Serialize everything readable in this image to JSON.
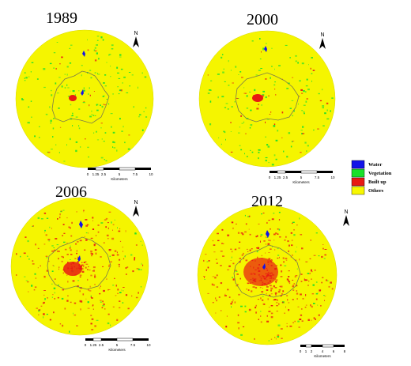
{
  "panels": [
    {
      "year": "1989",
      "scale": {
        "ticks": [
          "0",
          "1.25",
          "2.5",
          "5",
          "7.5",
          "10"
        ],
        "unit": "Kilometers"
      },
      "north_label": "N"
    },
    {
      "year": "2000",
      "scale": {
        "ticks": [
          "0",
          "1.25",
          "2.5",
          "5",
          "7.5",
          "10"
        ],
        "unit": "Kilometers"
      },
      "north_label": "N"
    },
    {
      "year": "2006",
      "scale": {
        "ticks": [
          "0",
          "1.25",
          "2.5",
          "5",
          "7.5",
          "10"
        ],
        "unit": "Kilometers"
      },
      "north_label": "N"
    },
    {
      "year": "2012",
      "scale": {
        "ticks": [
          "0",
          "1",
          "2",
          "4",
          "6",
          "8"
        ],
        "unit": "Kilometers"
      },
      "north_label": "N"
    }
  ],
  "legend": [
    {
      "label": "Water",
      "color": "#1313e8"
    },
    {
      "label": "Vegetation",
      "color": "#19e02a"
    },
    {
      "label": "Built up",
      "color": "#e81a12"
    },
    {
      "label": "Others",
      "color": "#f7f700"
    }
  ],
  "colors": {
    "background_land": "#f5f500",
    "boundary": "#7a7a4a"
  }
}
